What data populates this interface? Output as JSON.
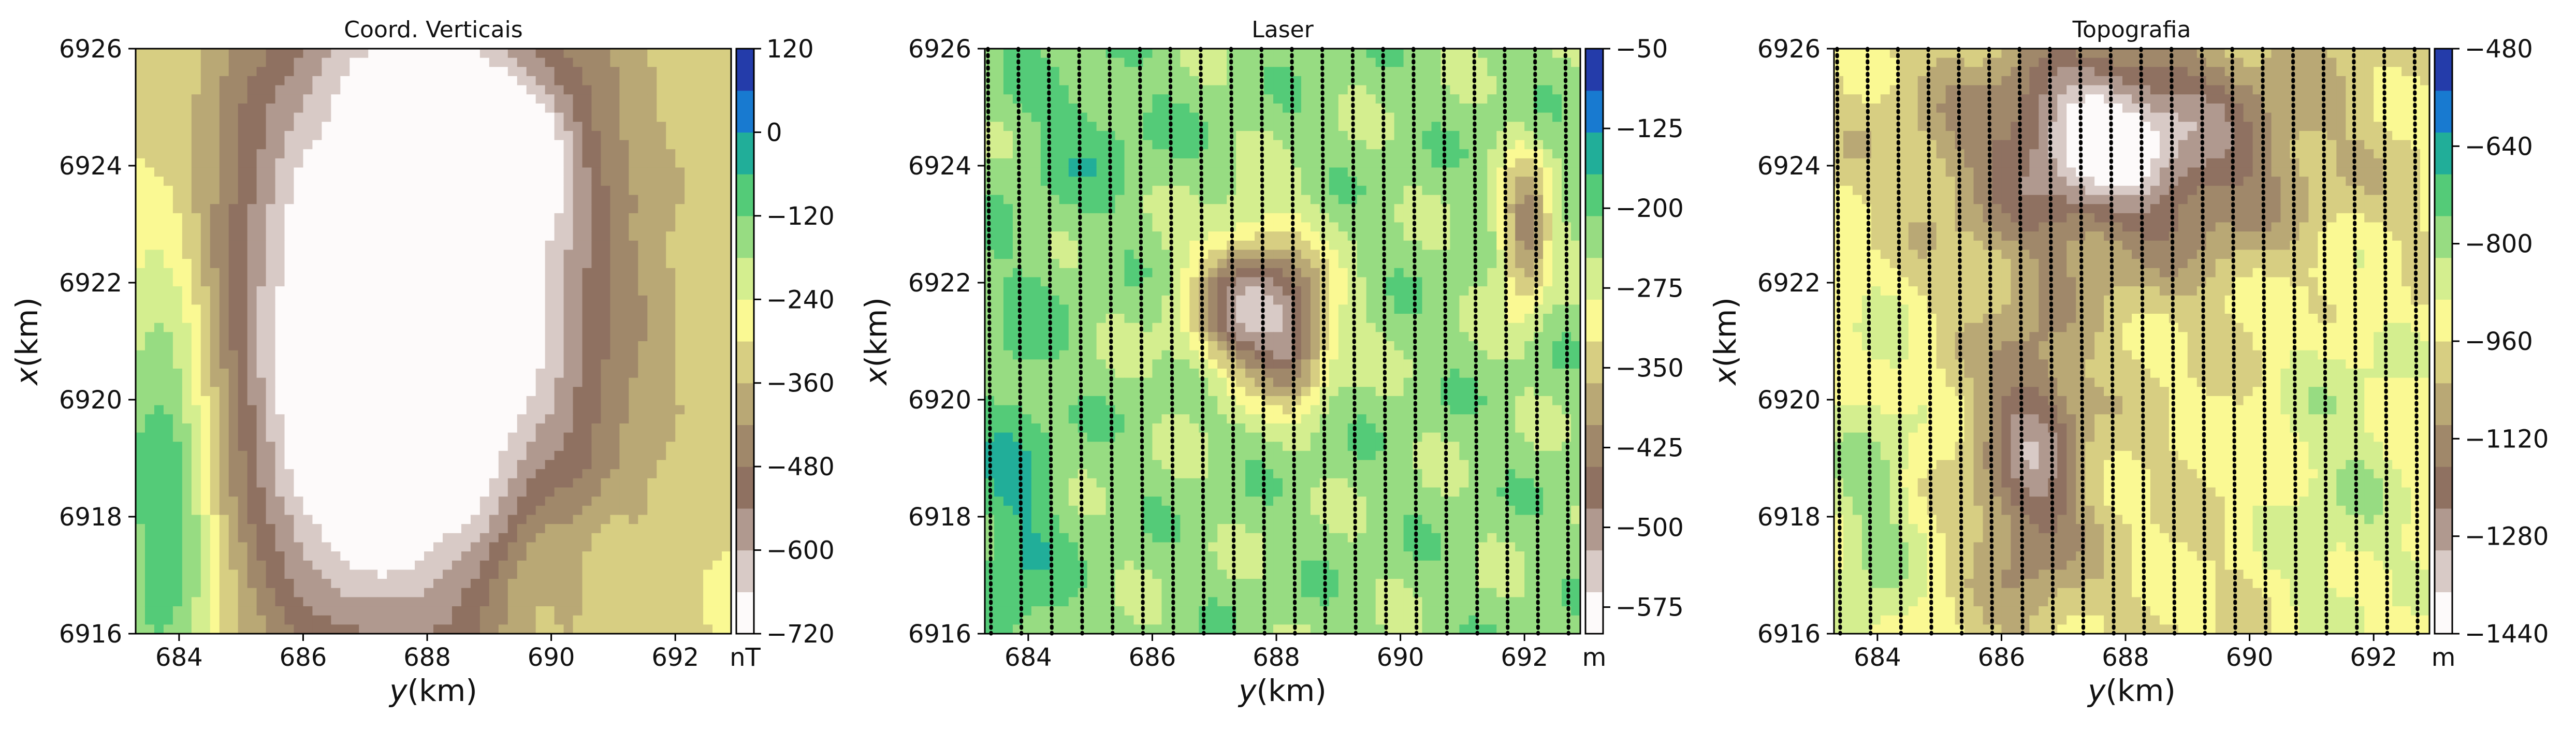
{
  "chart_data": [
    {
      "type": "heatmap",
      "title": "Coord. Verticais",
      "xlabel": "y(km)",
      "ylabel": "x(km)",
      "xlim": [
        683.3,
        692.9
      ],
      "ylim": [
        6916,
        6926
      ],
      "x_ticks": [
        684,
        686,
        688,
        690,
        692
      ],
      "y_ticks": [
        6916,
        6918,
        6920,
        6922,
        6924,
        6926
      ],
      "colorbar": {
        "unit": "nT",
        "min": -720,
        "max": 120,
        "ticks": [
          120,
          0,
          -120,
          -240,
          -360,
          -480,
          -600,
          -720
        ]
      },
      "flight_lines": false,
      "features": [
        {
          "x": 687.8,
          "y": 6921.8,
          "sx": 2.1,
          "sy": 4.2,
          "amp": -620
        },
        {
          "x": 688.2,
          "y": 6924.2,
          "sx": 0.7,
          "sy": 1.0,
          "amp": -240
        },
        {
          "x": 689.6,
          "y": 6924.2,
          "sx": 0.6,
          "sy": 0.8,
          "amp": -150
        },
        {
          "x": 686.6,
          "y": 6919.0,
          "sx": 0.9,
          "sy": 2.2,
          "amp": -120
        },
        {
          "x": 683.8,
          "y": 6918.5,
          "sx": 0.6,
          "sy": 3.2,
          "amp": 280
        },
        {
          "x": 689.7,
          "y": 6917.0,
          "sx": 0.5,
          "sy": 1.2,
          "amp": 120
        },
        {
          "x": 690.9,
          "y": 6917.3,
          "sx": 0.3,
          "sy": 0.9,
          "amp": 70
        }
      ],
      "base": -280
    },
    {
      "type": "heatmap",
      "title": "Laser",
      "xlabel": "y(km)",
      "ylabel": "x(km)",
      "xlim": [
        683.3,
        692.9
      ],
      "ylim": [
        6916,
        6926
      ],
      "x_ticks": [
        684,
        686,
        688,
        690,
        692
      ],
      "y_ticks": [
        6916,
        6918,
        6920,
        6922,
        6924,
        6926
      ],
      "colorbar": {
        "unit": "m",
        "min": -600,
        "max": -50,
        "ticks": [
          -50,
          -125,
          -200,
          -275,
          -350,
          -425,
          -500,
          -575
        ]
      },
      "flight_lines": true,
      "features": [
        {
          "x": 687.7,
          "y": 6921.6,
          "sx": 0.7,
          "sy": 0.9,
          "amp": -300
        },
        {
          "x": 688.3,
          "y": 6920.8,
          "sx": 0.35,
          "sy": 0.6,
          "amp": -120
        },
        {
          "x": 692.0,
          "y": 6922.8,
          "sx": 0.3,
          "sy": 0.9,
          "amp": -200
        },
        {
          "x": 683.8,
          "y": 6918.0,
          "sx": 0.5,
          "sy": 2.6,
          "amp": 60
        },
        {
          "x": 685.0,
          "y": 6924.5,
          "sx": 0.8,
          "sy": 1.0,
          "amp": 40
        }
      ],
      "base": -230
    },
    {
      "type": "heatmap",
      "title": "Topografia",
      "xlabel": "y(km)",
      "ylabel": "x(km)",
      "xlim": [
        683.3,
        692.9
      ],
      "ylim": [
        6916,
        6926
      ],
      "x_ticks": [
        684,
        686,
        688,
        690,
        692
      ],
      "y_ticks": [
        6916,
        6918,
        6920,
        6922,
        6924,
        6926
      ],
      "colorbar": {
        "unit": "m",
        "min": -1440,
        "max": -480,
        "ticks": [
          -480,
          -640,
          -800,
          -960,
          -1120,
          -1280,
          -1440
        ]
      },
      "flight_lines": true,
      "features": [
        {
          "x": 688.0,
          "y": 6924.3,
          "sx": 1.9,
          "sy": 1.3,
          "amp": -360
        },
        {
          "x": 687.6,
          "y": 6924.6,
          "sx": 0.7,
          "sy": 0.7,
          "amp": -180
        },
        {
          "x": 686.5,
          "y": 6919.0,
          "sx": 0.6,
          "sy": 1.7,
          "amp": -300
        },
        {
          "x": 683.9,
          "y": 6918.0,
          "sx": 0.6,
          "sy": 2.5,
          "amp": 150
        },
        {
          "x": 691.5,
          "y": 6918.5,
          "sx": 0.9,
          "sy": 2.5,
          "amp": 120
        }
      ],
      "base": -960
    }
  ]
}
